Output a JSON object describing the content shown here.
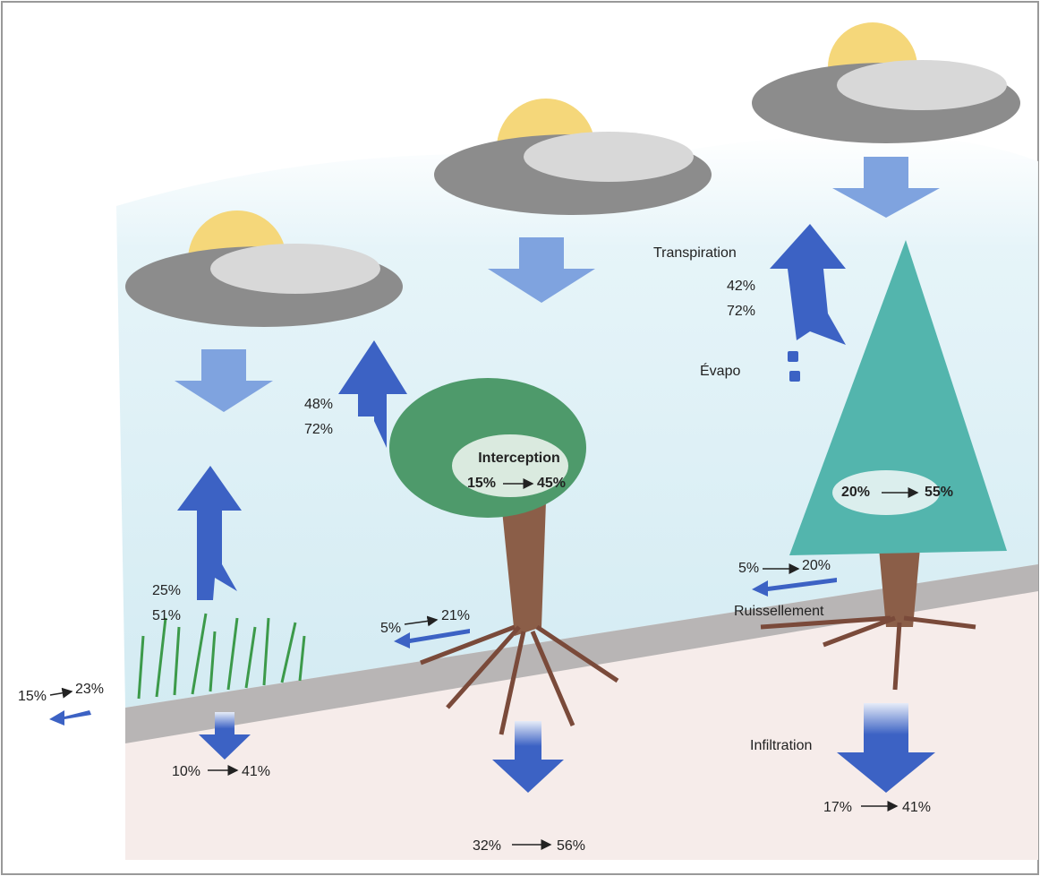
{
  "grass": {
    "evaporation": [
      "25%",
      "51%"
    ],
    "runoff": [
      "15%",
      "23%"
    ],
    "infiltration": [
      "10%",
      "41%"
    ]
  },
  "deciduous": {
    "evaporation": [
      "48%",
      "72%"
    ],
    "interception": {
      "label": "Interception",
      "values": [
        "15%",
        "45%"
      ]
    },
    "runoff": [
      "5%",
      "21%"
    ],
    "infiltration": [
      "32%",
      "56%"
    ]
  },
  "conifer": {
    "transpiration": {
      "label": "Transpiration",
      "values": [
        "42%",
        "72%"
      ]
    },
    "evaporation": "Évapo",
    "interception": [
      "20%",
      "55%"
    ],
    "runoff": {
      "label": "Ruissellement",
      "values": [
        "5%",
        "20%"
      ]
    },
    "infiltration": {
      "label": "Infiltration",
      "values": [
        "17%",
        "41%"
      ]
    }
  }
}
